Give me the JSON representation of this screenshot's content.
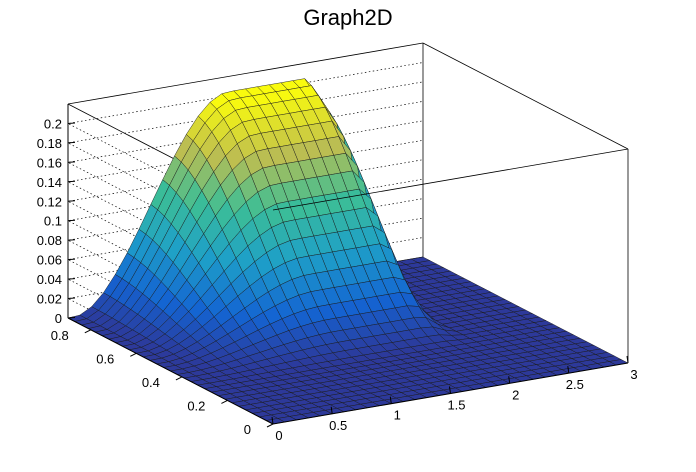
{
  "chart_data": {
    "type": "surface",
    "title": "Graph2D",
    "xlabel": "",
    "ylabel": "",
    "zlabel": "",
    "xlim": [
      0,
      3
    ],
    "ylim": [
      0,
      0.9
    ],
    "zlim": [
      0,
      0.22
    ],
    "x_ticks": [
      "0",
      "0.5",
      "1",
      "1.5",
      "2",
      "2.5",
      "3"
    ],
    "y_ticks": [
      "0",
      "0.2",
      "0.4",
      "0.6",
      "0.8"
    ],
    "z_ticks": [
      "0",
      "0.02",
      "0.04",
      "0.06",
      "0.08",
      "0.1",
      "0.12",
      "0.14",
      "0.16",
      "0.18",
      "0.2"
    ],
    "colormap": "viridis",
    "surface": {
      "description": "Peak of about 0.20 near x between 1.4 and 2.0 at y=0.9, falling to 0 for low y and for x above 2.2",
      "peak_z": 0.205,
      "grid_x_points": 30,
      "grid_y_points": 30
    }
  }
}
